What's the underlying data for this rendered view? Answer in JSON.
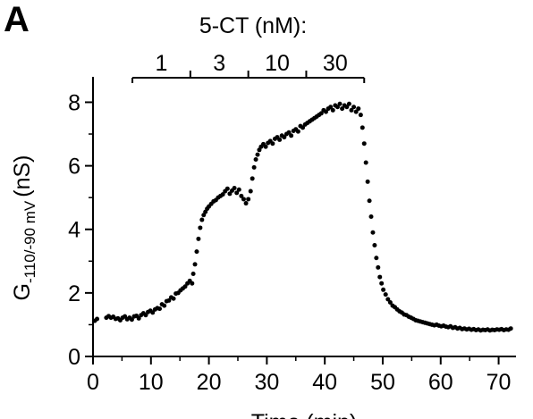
{
  "panel_label": "A",
  "chart_data": {
    "type": "scatter",
    "title": "",
    "xlabel": "Time (min)",
    "ylabel": {
      "main": "G",
      "subscript": "-110/-90 mV",
      "unit": "(nS)"
    },
    "xlim": [
      0,
      73
    ],
    "ylim": [
      0,
      8.8
    ],
    "xticks": [
      0,
      10,
      20,
      30,
      40,
      50,
      60,
      70
    ],
    "yticks": [
      0,
      2,
      4,
      6,
      8
    ],
    "grid": false,
    "legend": "none",
    "color": "#000000",
    "treatment": {
      "label": "5-CT (nM):",
      "segments": [
        {
          "label": "1",
          "start": 6.8,
          "end": 16.8
        },
        {
          "label": "3",
          "start": 16.8,
          "end": 26.8
        },
        {
          "label": "10",
          "start": 26.8,
          "end": 36.8
        },
        {
          "label": "30",
          "start": 36.8,
          "end": 46.8
        }
      ]
    },
    "series": [
      {
        "values": [
          [
            0.3,
            1.12
          ],
          [
            0.7,
            1.18
          ],
          [
            2.3,
            1.22
          ],
          [
            2.7,
            1.27
          ],
          [
            3.1,
            1.22
          ],
          [
            3.5,
            1.25
          ],
          [
            3.9,
            1.18
          ],
          [
            4.3,
            1.2
          ],
          [
            4.7,
            1.14
          ],
          [
            5.1,
            1.22
          ],
          [
            5.5,
            1.26
          ],
          [
            5.9,
            1.17
          ],
          [
            6.3,
            1.22
          ],
          [
            6.7,
            1.16
          ],
          [
            7.1,
            1.26
          ],
          [
            7.5,
            1.28
          ],
          [
            7.9,
            1.2
          ],
          [
            8.3,
            1.3
          ],
          [
            8.7,
            1.36
          ],
          [
            9.1,
            1.3
          ],
          [
            9.5,
            1.4
          ],
          [
            9.9,
            1.44
          ],
          [
            10.3,
            1.38
          ],
          [
            10.7,
            1.48
          ],
          [
            11.1,
            1.52
          ],
          [
            11.5,
            1.5
          ],
          [
            11.9,
            1.64
          ],
          [
            12.3,
            1.6
          ],
          [
            12.7,
            1.74
          ],
          [
            13.1,
            1.76
          ],
          [
            13.5,
            1.86
          ],
          [
            13.9,
            1.82
          ],
          [
            14.3,
            1.98
          ],
          [
            14.7,
            2.0
          ],
          [
            15.1,
            2.08
          ],
          [
            15.5,
            2.14
          ],
          [
            15.9,
            2.2
          ],
          [
            16.3,
            2.3
          ],
          [
            16.7,
            2.38
          ],
          [
            17.1,
            2.3
          ],
          [
            17.3,
            2.6
          ],
          [
            17.6,
            2.9
          ],
          [
            17.9,
            3.3
          ],
          [
            18.2,
            3.7
          ],
          [
            18.5,
            4.05
          ],
          [
            18.8,
            4.3
          ],
          [
            19.1,
            4.45
          ],
          [
            19.4,
            4.55
          ],
          [
            19.7,
            4.65
          ],
          [
            20.0,
            4.72
          ],
          [
            20.4,
            4.8
          ],
          [
            20.8,
            4.88
          ],
          [
            21.2,
            4.92
          ],
          [
            21.6,
            5.0
          ],
          [
            22.0,
            5.05
          ],
          [
            22.4,
            5.1
          ],
          [
            22.8,
            5.2
          ],
          [
            23.2,
            5.28
          ],
          [
            23.6,
            5.12
          ],
          [
            24.0,
            5.22
          ],
          [
            24.4,
            5.3
          ],
          [
            24.8,
            5.15
          ],
          [
            25.2,
            5.25
          ],
          [
            25.6,
            5.05
          ],
          [
            26.0,
            4.95
          ],
          [
            26.4,
            4.82
          ],
          [
            26.8,
            4.95
          ],
          [
            27.2,
            5.2
          ],
          [
            27.5,
            5.6
          ],
          [
            27.8,
            5.95
          ],
          [
            28.1,
            6.2
          ],
          [
            28.4,
            6.35
          ],
          [
            28.7,
            6.5
          ],
          [
            29.0,
            6.6
          ],
          [
            29.4,
            6.68
          ],
          [
            29.8,
            6.6
          ],
          [
            30.2,
            6.72
          ],
          [
            30.6,
            6.78
          ],
          [
            31.0,
            6.7
          ],
          [
            31.4,
            6.85
          ],
          [
            31.8,
            6.9
          ],
          [
            32.2,
            6.82
          ],
          [
            32.6,
            6.95
          ],
          [
            33.0,
            6.9
          ],
          [
            33.4,
            7.0
          ],
          [
            33.8,
            7.05
          ],
          [
            34.2,
            6.95
          ],
          [
            34.6,
            7.1
          ],
          [
            35.0,
            7.15
          ],
          [
            35.4,
            7.08
          ],
          [
            35.8,
            7.25
          ],
          [
            36.2,
            7.2
          ],
          [
            36.6,
            7.3
          ],
          [
            37.0,
            7.35
          ],
          [
            37.4,
            7.4
          ],
          [
            37.8,
            7.45
          ],
          [
            38.2,
            7.5
          ],
          [
            38.6,
            7.55
          ],
          [
            39.0,
            7.6
          ],
          [
            39.4,
            7.65
          ],
          [
            39.8,
            7.75
          ],
          [
            40.2,
            7.7
          ],
          [
            40.6,
            7.8
          ],
          [
            41.0,
            7.85
          ],
          [
            41.4,
            7.75
          ],
          [
            41.8,
            7.9
          ],
          [
            42.2,
            7.85
          ],
          [
            42.6,
            7.95
          ],
          [
            43.0,
            7.8
          ],
          [
            43.4,
            7.9
          ],
          [
            43.8,
            7.85
          ],
          [
            44.2,
            7.95
          ],
          [
            44.6,
            7.75
          ],
          [
            45.0,
            7.85
          ],
          [
            45.4,
            7.7
          ],
          [
            45.8,
            7.8
          ],
          [
            46.2,
            7.6
          ],
          [
            46.5,
            7.2
          ],
          [
            46.8,
            6.7
          ],
          [
            47.1,
            6.1
          ],
          [
            47.4,
            5.5
          ],
          [
            47.7,
            4.9
          ],
          [
            48.0,
            4.4
          ],
          [
            48.3,
            3.9
          ],
          [
            48.6,
            3.5
          ],
          [
            48.9,
            3.1
          ],
          [
            49.2,
            2.8
          ],
          [
            49.5,
            2.5
          ],
          [
            49.8,
            2.3
          ],
          [
            50.1,
            2.1
          ],
          [
            50.5,
            1.95
          ],
          [
            50.9,
            1.8
          ],
          [
            51.3,
            1.7
          ],
          [
            51.7,
            1.6
          ],
          [
            52.1,
            1.55
          ],
          [
            52.5,
            1.48
          ],
          [
            52.9,
            1.42
          ],
          [
            53.3,
            1.38
          ],
          [
            53.7,
            1.32
          ],
          [
            54.1,
            1.3
          ],
          [
            54.5,
            1.25
          ],
          [
            54.9,
            1.22
          ],
          [
            55.3,
            1.18
          ],
          [
            55.7,
            1.14
          ],
          [
            56.1,
            1.12
          ],
          [
            56.5,
            1.1
          ],
          [
            56.9,
            1.08
          ],
          [
            57.3,
            1.06
          ],
          [
            57.7,
            1.04
          ],
          [
            58.1,
            1.02
          ],
          [
            58.5,
            1.0
          ],
          [
            58.9,
            0.98
          ],
          [
            59.3,
            1.0
          ],
          [
            59.7,
            0.97
          ],
          [
            60.1,
            0.95
          ],
          [
            60.5,
            0.97
          ],
          [
            60.9,
            0.94
          ],
          [
            61.3,
            0.92
          ],
          [
            61.7,
            0.95
          ],
          [
            62.1,
            0.9
          ],
          [
            62.5,
            0.92
          ],
          [
            62.9,
            0.88
          ],
          [
            63.3,
            0.9
          ],
          [
            63.7,
            0.86
          ],
          [
            64.1,
            0.88
          ],
          [
            64.5,
            0.85
          ],
          [
            64.9,
            0.87
          ],
          [
            65.3,
            0.84
          ],
          [
            65.7,
            0.86
          ],
          [
            66.1,
            0.83
          ],
          [
            66.5,
            0.85
          ],
          [
            66.9,
            0.82
          ],
          [
            67.3,
            0.84
          ],
          [
            67.7,
            0.83
          ],
          [
            68.1,
            0.85
          ],
          [
            68.5,
            0.82
          ],
          [
            68.9,
            0.84
          ],
          [
            69.3,
            0.83
          ],
          [
            69.7,
            0.85
          ],
          [
            70.1,
            0.84
          ],
          [
            70.5,
            0.86
          ],
          [
            70.9,
            0.83
          ],
          [
            71.3,
            0.85
          ],
          [
            71.7,
            0.84
          ],
          [
            72.1,
            0.88
          ]
        ]
      }
    ]
  }
}
